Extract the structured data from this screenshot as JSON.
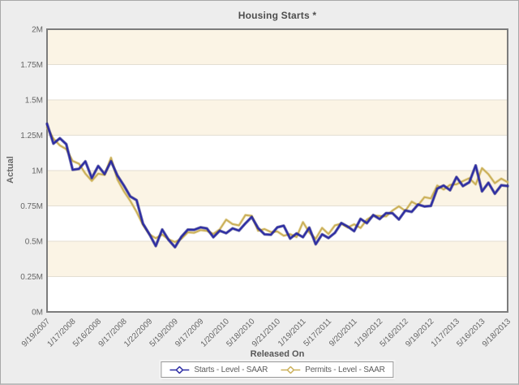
{
  "title": "Housing Starts *",
  "y_axis": {
    "label": "Actual"
  },
  "x_axis": {
    "label": "Released On"
  },
  "legend": {
    "items": [
      {
        "label": "Starts - Level - SAAR"
      },
      {
        "label": "Permits - Level - SAAR"
      }
    ]
  },
  "colors": {
    "starts_line": "#2b2ba4",
    "starts_halo": "#181875",
    "permits_line": "#cbb05a",
    "permits_halo": "#e3d497",
    "band_cream": "#fbf4e5",
    "band_white": "#ffffff",
    "gridline": "#e3ded2",
    "plot_border": "#7c7c7c",
    "page_background": "#ededed",
    "tick_text": "#666666"
  },
  "chart_data": {
    "type": "line",
    "title": "Housing Starts *",
    "xlabel": "Released On",
    "ylabel": "Actual",
    "units": "millions of units, SAAR",
    "ylim": [
      0,
      2
    ],
    "y_tick_labels": [
      "2M",
      "1.75M",
      "1.5M",
      "1.25M",
      "1M",
      "0.75M",
      "0.5M",
      "0.25M",
      "0M"
    ],
    "x_tick_labels": [
      "9/19/2007",
      "1/17/2008",
      "5/16/2008",
      "9/17/2008",
      "1/22/2009",
      "5/19/2009",
      "9/17/2009",
      "1/20/2010",
      "5/18/2010",
      "9/21/2010",
      "1/19/2011",
      "5/17/2011",
      "9/20/2011",
      "1/19/2012",
      "5/16/2012",
      "9/19/2012",
      "1/17/2013",
      "5/16/2013",
      "9/18/2013"
    ],
    "x_note": "monthly releases, one data point per month, ticks every 4 months",
    "series": [
      {
        "name": "Starts - Level - SAAR",
        "color": "#2b2ba4",
        "values": [
          1.331,
          1.191,
          1.229,
          1.187,
          1.006,
          1.012,
          1.065,
          0.947,
          1.032,
          0.975,
          1.066,
          0.965,
          0.895,
          0.817,
          0.791,
          0.625,
          0.55,
          0.466,
          0.583,
          0.51,
          0.458,
          0.532,
          0.582,
          0.581,
          0.598,
          0.59,
          0.529,
          0.574,
          0.557,
          0.591,
          0.575,
          0.626,
          0.672,
          0.593,
          0.549,
          0.546,
          0.598,
          0.61,
          0.519,
          0.555,
          0.529,
          0.596,
          0.479,
          0.549,
          0.523,
          0.56,
          0.629,
          0.604,
          0.571,
          0.658,
          0.628,
          0.685,
          0.657,
          0.699,
          0.698,
          0.654,
          0.717,
          0.708,
          0.76,
          0.746,
          0.75,
          0.872,
          0.894,
          0.861,
          0.954,
          0.89,
          0.917,
          1.036,
          0.853,
          0.914,
          0.836,
          0.896,
          0.891
        ]
      },
      {
        "name": "Permits - Level - SAAR",
        "color": "#cbb05a",
        "values": [
          1.307,
          1.226,
          1.178,
          1.152,
          1.068,
          1.048,
          0.978,
          0.927,
          0.978,
          0.969,
          1.091,
          0.937,
          0.854,
          0.786,
          0.708,
          0.616,
          0.549,
          0.521,
          0.547,
          0.513,
          0.494,
          0.518,
          0.563,
          0.56,
          0.579,
          0.573,
          0.552,
          0.584,
          0.653,
          0.621,
          0.612,
          0.685,
          0.68,
          0.574,
          0.586,
          0.565,
          0.569,
          0.539,
          0.55,
          0.53,
          0.635,
          0.562,
          0.517,
          0.594,
          0.551,
          0.612,
          0.624,
          0.597,
          0.62,
          0.594,
          0.653,
          0.681,
          0.679,
          0.676,
          0.717,
          0.747,
          0.715,
          0.78,
          0.755,
          0.812,
          0.803,
          0.894,
          0.866,
          0.899,
          0.903,
          0.925,
          0.946,
          0.902,
          1.017,
          0.974,
          0.911,
          0.943,
          0.918
        ]
      }
    ],
    "legend_position": "bottom"
  }
}
